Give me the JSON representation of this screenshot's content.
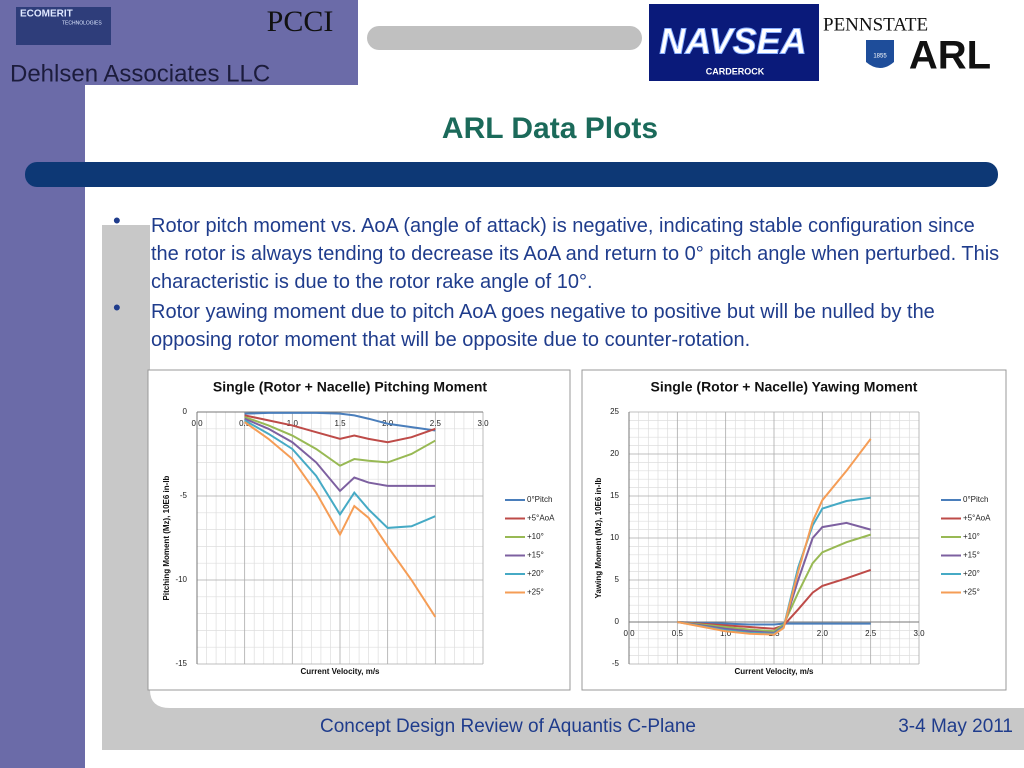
{
  "header": {
    "ecomerit": "ECOMERIT",
    "ecomerit_sub": "TECHNOLOGIES",
    "pcci": "PCCI",
    "company": "Dehlsen Associates LLC",
    "navsea": "NAVSEA",
    "navsea_sub": "CARDEROCK",
    "pennstate": "PENNSTATE",
    "year": "1855",
    "arl": "ARL"
  },
  "title": "ARL Data Plots",
  "bullets": [
    "Rotor pitch moment vs. AoA (angle of attack) is negative, indicating stable configuration since the rotor is always tending to decrease its AoA and return to 0° pitch angle when perturbed. This characteristic is due to the rotor rake angle of 10°.",
    "Rotor yawing moment due to pitch AoA goes negative to positive but will be nulled by the opposing rotor moment that will be opposite due to counter-rotation."
  ],
  "footer": {
    "left": "Concept Design Review of Aquantis C-Plane",
    "right": "3-4 May 2011"
  },
  "chart_data": [
    {
      "type": "line",
      "title": "Single (Rotor + Nacelle) Pitching Moment",
      "x_label": "Current Velocity, m/s",
      "y_label": "Pitching Moment (Mz), 10E6 in-lb",
      "x": [
        0.5,
        0.75,
        1.0,
        1.25,
        1.5,
        1.65,
        1.8,
        2.0,
        2.25,
        2.5
      ],
      "series": [
        {
          "name": "0°Pitch",
          "color": "#4a7ebb",
          "values": [
            -0.1,
            -0.05,
            -0.05,
            -0.05,
            -0.1,
            -0.2,
            -0.4,
            -0.7,
            -0.9,
            -1.1
          ]
        },
        {
          "name": "+5°AoA",
          "color": "#be4b48",
          "values": [
            -0.2,
            -0.5,
            -0.8,
            -1.2,
            -1.6,
            -1.4,
            -1.6,
            -1.8,
            -1.5,
            -1.0
          ]
        },
        {
          "name": "+10°",
          "color": "#98b954",
          "values": [
            -0.3,
            -0.8,
            -1.4,
            -2.2,
            -3.2,
            -2.8,
            -2.9,
            -3.0,
            -2.5,
            -1.7
          ]
        },
        {
          "name": "+15°",
          "color": "#7d60a0",
          "values": [
            -0.4,
            -1.0,
            -1.8,
            -3.0,
            -4.7,
            -3.9,
            -4.2,
            -4.4,
            -4.4,
            -4.4
          ]
        },
        {
          "name": "+20°",
          "color": "#46aac5",
          "values": [
            -0.5,
            -1.3,
            -2.2,
            -3.8,
            -6.1,
            -4.8,
            -5.8,
            -6.9,
            -6.8,
            -6.2
          ]
        },
        {
          "name": "+25°",
          "color": "#f59d56",
          "values": [
            -0.6,
            -1.6,
            -2.8,
            -4.8,
            -7.3,
            -5.6,
            -6.3,
            -8.0,
            -10.0,
            -12.2
          ]
        }
      ],
      "xlim": [
        0,
        3
      ],
      "xticks": [
        {
          "value": 0,
          "label": "0.0"
        },
        0.5,
        {
          "value": 1,
          "label": "1.0"
        },
        1.5,
        {
          "value": 2,
          "label": "2.0"
        },
        2.5,
        {
          "value": 3,
          "label": "3.0"
        }
      ],
      "ylim": [
        -15,
        0
      ],
      "yticks": [
        0,
        -5,
        -10,
        -15
      ],
      "grid": true,
      "legend": "right"
    },
    {
      "type": "line",
      "title": "Single (Rotor + Nacelle) Yawing Moment",
      "x_label": "Current Velocity, m/s",
      "y_label": "Yawing Moment (Mz), 10E6 in-lb",
      "x": [
        0.5,
        1.0,
        1.25,
        1.5,
        1.6,
        1.75,
        1.9,
        2.0,
        2.25,
        2.5
      ],
      "series": [
        {
          "name": "0°Pitch",
          "color": "#4a7ebb",
          "values": [
            0,
            -0.2,
            -0.3,
            -0.3,
            -0.2,
            -0.2,
            -0.2,
            -0.2,
            -0.2,
            -0.2
          ]
        },
        {
          "name": "+5°AoA",
          "color": "#be4b48",
          "values": [
            0,
            -0.4,
            -0.6,
            -0.8,
            -0.4,
            1.5,
            3.5,
            4.3,
            5.2,
            6.2
          ]
        },
        {
          "name": "+10°",
          "color": "#98b954",
          "values": [
            0,
            -0.6,
            -0.9,
            -1.1,
            -0.3,
            3.5,
            7.0,
            8.3,
            9.5,
            10.4
          ]
        },
        {
          "name": "+15°",
          "color": "#7d60a0",
          "values": [
            0,
            -0.8,
            -1.1,
            -1.3,
            -0.5,
            5.0,
            10.0,
            11.3,
            11.8,
            11.0
          ]
        },
        {
          "name": "+20°",
          "color": "#46aac5",
          "values": [
            0,
            -1.0,
            -1.3,
            -1.4,
            -0.6,
            6.5,
            11.5,
            13.5,
            14.4,
            14.8
          ]
        },
        {
          "name": "+25°",
          "color": "#f59d56",
          "values": [
            0,
            -1.1,
            -1.4,
            -1.5,
            -0.7,
            6.0,
            12.0,
            14.5,
            18.0,
            21.8
          ]
        }
      ],
      "xlim": [
        0,
        3
      ],
      "xticks": [
        {
          "value": 0,
          "label": "0.0"
        },
        0.5,
        {
          "value": 1,
          "label": "1.0"
        },
        1.5,
        {
          "value": 2,
          "label": "2.0"
        },
        2.5,
        {
          "value": 3,
          "label": "3.0"
        }
      ],
      "ylim": [
        -5,
        25
      ],
      "yticks": [
        25,
        20,
        15,
        10,
        5,
        0,
        -5
      ],
      "grid": true,
      "legend": "right"
    }
  ]
}
